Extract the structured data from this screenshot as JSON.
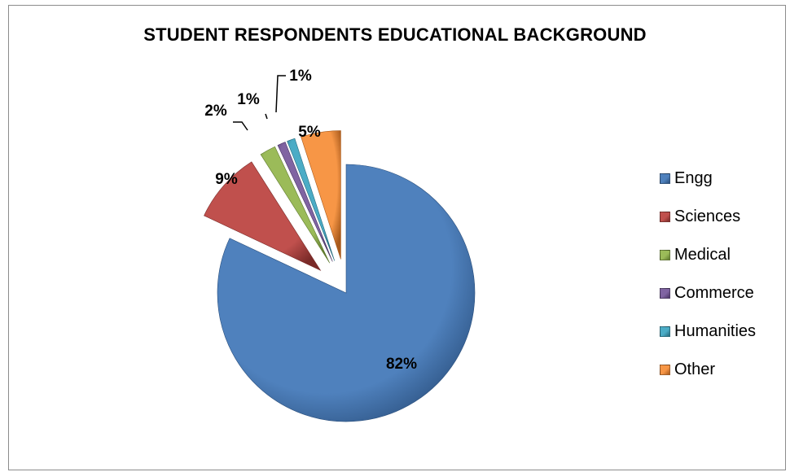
{
  "chart_data": {
    "type": "pie",
    "title": "STUDENT RESPONDENTS EDUCATIONAL BACKGROUND",
    "legend_position": "right",
    "slices": [
      {
        "label": "Engg",
        "value": 82,
        "display": "82%",
        "color": "#4f81bd",
        "dark": "#2a4f7d"
      },
      {
        "label": "Sciences",
        "value": 9,
        "display": "9%",
        "color": "#c0504d",
        "dark": "#7a2a28"
      },
      {
        "label": "Medical",
        "value": 2,
        "display": "2%",
        "color": "#9bbb59",
        "dark": "#5f7a2e"
      },
      {
        "label": "Commerce",
        "value": 1,
        "display": "1%",
        "color": "#8064a2",
        "dark": "#4a3566"
      },
      {
        "label": "Humanities",
        "value": 1,
        "display": "1%",
        "color": "#4bacc6",
        "dark": "#256a7d"
      },
      {
        "label": "Other",
        "value": 5,
        "display": "5%",
        "color": "#f79646",
        "dark": "#a85a1c"
      }
    ]
  }
}
